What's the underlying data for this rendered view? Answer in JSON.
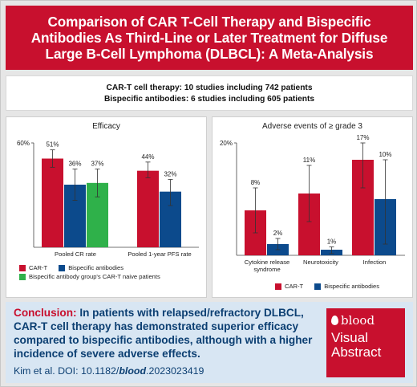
{
  "title": "Comparison of CAR T-Cell Therapy and Bispecific Antibodies As Third-Line or Later Treatment for Diffuse Large B-Cell Lymphoma (DLBCL): A Meta-Analysis",
  "studies": {
    "line1": "CAR-T cell therapy: 10 studies including 742 patients",
    "line2": "Bispecific antibodies: 6 studies including 605 patients"
  },
  "colors": {
    "cart": "#c8102e",
    "bispecific": "#0c4a8c",
    "naive": "#2fb14a",
    "banner": "#c8102e",
    "conclusion_bg": "#d8e6f3"
  },
  "chart_data": [
    {
      "type": "bar",
      "title": "Efficacy",
      "ylim": [
        0,
        60
      ],
      "yticks": [
        "60%"
      ],
      "categories": [
        "Pooled CR rate",
        "Pooled 1-year PFS rate"
      ],
      "bars": [
        {
          "category": "Pooled CR rate",
          "series": "CAR-T",
          "value": 51,
          "label": "51%",
          "err_lo": 46,
          "err_hi": 56
        },
        {
          "category": "Pooled CR rate",
          "series": "Bispecific antibodies",
          "value": 36,
          "label": "36%",
          "err_lo": 27,
          "err_hi": 45
        },
        {
          "category": "Pooled CR rate",
          "series": "Bispecific antibody group's CAR-T naive patients",
          "value": 37,
          "label": "37%",
          "err_lo": 29,
          "err_hi": 45
        },
        {
          "category": "Pooled 1-year PFS rate",
          "series": "CAR-T",
          "value": 44,
          "label": "44%",
          "err_lo": 40,
          "err_hi": 49
        },
        {
          "category": "Pooled 1-year PFS rate",
          "series": "Bispecific antibodies",
          "value": 32,
          "label": "32%",
          "err_lo": 24,
          "err_hi": 39
        }
      ],
      "legend": [
        "CAR-T",
        "Bispecific antibodies",
        "Bispecific antibody group's CAR-T naive patients"
      ]
    },
    {
      "type": "bar",
      "title": "Adverse events of ≥ grade 3",
      "ylim": [
        0,
        20
      ],
      "yticks": [
        "20%"
      ],
      "categories": [
        "Cytokine release syndrome",
        "Neurotoxicity",
        "Infection"
      ],
      "bars": [
        {
          "category": "Cytokine release syndrome",
          "series": "CAR-T",
          "value": 8,
          "label": "8%",
          "err_lo": 4,
          "err_hi": 12
        },
        {
          "category": "Cytokine release syndrome",
          "series": "Bispecific antibodies",
          "value": 2,
          "label": "2%",
          "err_lo": 1,
          "err_hi": 3
        },
        {
          "category": "Neurotoxicity",
          "series": "CAR-T",
          "value": 11,
          "label": "11%",
          "err_lo": 6,
          "err_hi": 16
        },
        {
          "category": "Neurotoxicity",
          "series": "Bispecific antibodies",
          "value": 1,
          "label": "1%",
          "err_lo": 0.3,
          "err_hi": 1.5
        },
        {
          "category": "Infection",
          "series": "CAR-T",
          "value": 17,
          "label": "17%",
          "err_lo": 12,
          "err_hi": 20
        },
        {
          "category": "Infection",
          "series": "Bispecific antibodies",
          "value": 10,
          "label": "10%",
          "err_lo": 2,
          "err_hi": 17
        }
      ],
      "legend": [
        "CAR-T",
        "Bispecific antibodies"
      ]
    }
  ],
  "conclusion": {
    "lead": "Conclusion:",
    "body": "In patients with relapsed/refractory DLBCL, CAR-T cell therapy has demonstrated superior efficacy compared to bispecific antibodies, although with a higher incidence of severe adverse effects.",
    "cite_prefix": "Kim et al. DOI: 10.1182/",
    "cite_journal": "blood",
    "cite_suffix": ".2023023419"
  },
  "badge": {
    "logo": "blood",
    "line1": "Visual",
    "line2": "Abstract"
  }
}
